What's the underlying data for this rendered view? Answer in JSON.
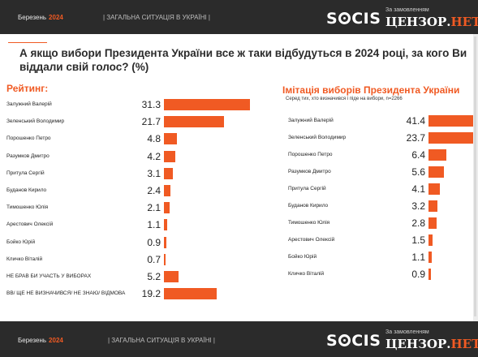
{
  "header": {
    "month": "Березень",
    "year": "2024",
    "section": "| ЗАГАЛЬНА СИТУАЦІЯ В УКРАЇНІ |",
    "logo_text": "SOCIS",
    "logo_order": "За замовленням",
    "logo_censor": "ЦЕНЗОР.",
    "logo_net": "НЕТ"
  },
  "footer": {
    "month": "Березень",
    "year": "2024",
    "section": "| ЗАГАЛЬНА СИТУАЦІЯ В УКРАЇНІ |",
    "logo_text": "SOCIS",
    "logo_order": "За замовленням",
    "logo_censor": "ЦЕНЗОР.",
    "logo_net": "НЕТ"
  },
  "question": "А якщо вибори Президента України все ж таки відбудуться в 2024 році, за кого Ви віддали свій голос? (%)",
  "colors": {
    "accent": "#f05a23",
    "band": "#2b2b2b"
  },
  "chart_data": [
    {
      "type": "bar",
      "orientation": "horizontal",
      "title": "Рейтинг:",
      "categories": [
        "Залужний Валерій",
        "Зеленський Володимир",
        "Порошенко Петро",
        "Разумков Дмитро",
        "Притула Сергій",
        "Буданов Кирило",
        "Тимошенко Юлія",
        "Арестович Олексій",
        "Бойко Юрій",
        "Кличко Віталій",
        "НЕ БРАВ БИ УЧАСТЬ У ВИБОРАХ",
        "ВВ/ ЩЕ НЕ ВИЗНАЧИВСЯ/ НЕ ЗНАЮ/ ВІДМОВА"
      ],
      "values": [
        31.3,
        21.7,
        4.8,
        4.2,
        3.1,
        2.4,
        2.1,
        1.1,
        0.9,
        0.7,
        5.2,
        19.2
      ],
      "value_labels": [
        "31.3",
        "21.7",
        "4.8",
        "4.2",
        "3.1",
        "2.4",
        "2.1",
        "1.1",
        "0.9",
        "0.7",
        "5.2",
        "19.2"
      ]
    },
    {
      "type": "bar",
      "orientation": "horizontal",
      "title": "Імітація виборів Президента України",
      "subtitle": "Серед тих, хто визначився і піде на вибори, n=2266",
      "categories": [
        "Залужний Валерій",
        "Зеленський Володимир",
        "Порошенко Петро",
        "Разумков Дмитро",
        "Притула Сергій",
        "Буданов Кирило",
        "Тимошенко Юлія",
        "Арестович Олексій",
        "Бойко Юрій",
        "Кличко Віталій"
      ],
      "values": [
        41.4,
        23.7,
        6.4,
        5.6,
        4.1,
        3.2,
        2.8,
        1.5,
        1.1,
        0.9
      ],
      "value_labels": [
        "41.4",
        "23.7",
        "6.4",
        "5.6",
        "4.1",
        "3.2",
        "2.8",
        "1.5",
        "1.1",
        "0.9"
      ]
    }
  ]
}
